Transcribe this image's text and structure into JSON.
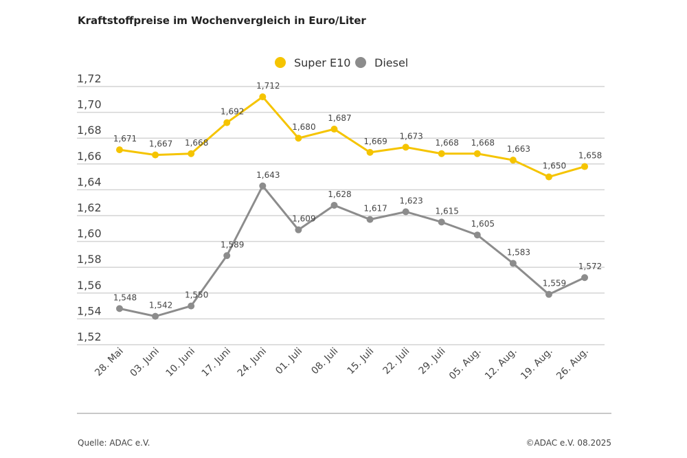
{
  "chart_data": {
    "type": "line",
    "title": "Kraftstoffpreise im Wochenvergleich in Euro/Liter",
    "xlabel": "",
    "ylabel": "",
    "ylim": [
      1.52,
      1.72
    ],
    "yticks": [
      "1,52",
      "1,54",
      "1,56",
      "1,58",
      "1,60",
      "1,62",
      "1,64",
      "1,66",
      "1,68",
      "1,70",
      "1,72"
    ],
    "grid": true,
    "legend_position": "top-center",
    "categories": [
      "28. Mai",
      "03. Juni",
      "10. Juni",
      "17. Juni",
      "24. Juni",
      "01. Juli",
      "08. Juli",
      "15. Juli",
      "22. Juli",
      "29. Juli",
      "05. Aug.",
      "12. Aug.",
      "19. Aug.",
      "26. Aug."
    ],
    "series": [
      {
        "name": "Super E10",
        "color": "#f5c400",
        "values": [
          1.671,
          1.667,
          1.668,
          1.692,
          1.712,
          1.68,
          1.687,
          1.669,
          1.673,
          1.668,
          1.668,
          1.663,
          1.65,
          1.658
        ],
        "labels": [
          "1,671",
          "1,667",
          "1,668",
          "1,692",
          "1,712",
          "1,680",
          "1,687",
          "1,669",
          "1,673",
          "1,668",
          "1,668",
          "1,663",
          "1,650",
          "1,658"
        ]
      },
      {
        "name": "Diesel",
        "color": "#8c8c8c",
        "values": [
          1.548,
          1.542,
          1.55,
          1.589,
          1.643,
          1.609,
          1.628,
          1.617,
          1.623,
          1.615,
          1.605,
          1.583,
          1.559,
          1.572
        ],
        "labels": [
          "1,548",
          "1,542",
          "1,550",
          "1,589",
          "1,643",
          "1,609",
          "1,628",
          "1,617",
          "1,623",
          "1,615",
          "1,605",
          "1,583",
          "1,559",
          "1,572"
        ]
      }
    ]
  },
  "footer": {
    "source": "Quelle: ADAC e.V.",
    "copyright": "©ADAC e.V. 08.2025"
  }
}
